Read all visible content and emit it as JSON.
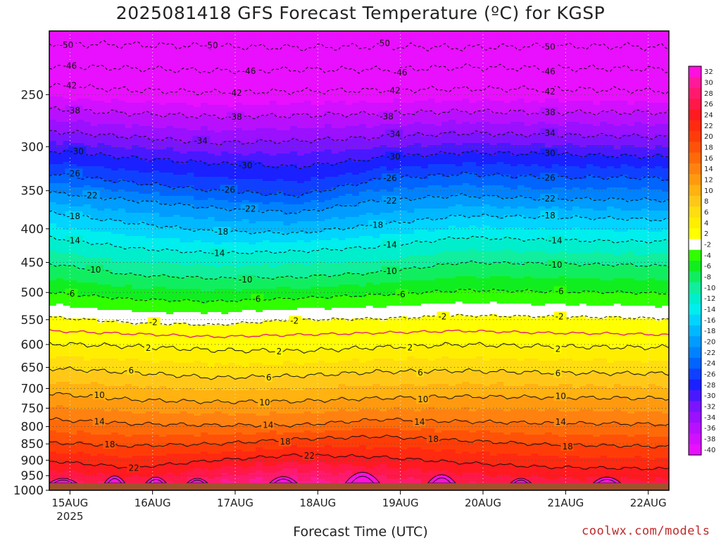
{
  "title": "2025081418 GFS Forecast Temperature (ºC) for KGSP",
  "xlabel": "Forecast Time (UTC)",
  "credit": "coolwx.com/models",
  "chart_data": {
    "type": "heatmap",
    "title": "2025081418 GFS Forecast Temperature (ºC) for KGSP",
    "xlabel": "Forecast Time (UTC)",
    "ylabel": "",
    "y_scale": "log",
    "y_inverted": true,
    "ylim": [
      1000,
      200
    ],
    "xlim": [
      "2025-08-14T18:00",
      "2025-08-22T06:00"
    ],
    "x_ticks": [
      {
        "label": "15AUG",
        "sublabel": "2025",
        "date": "2025-08-15T00:00"
      },
      {
        "label": "16AUG",
        "sublabel": "",
        "date": "2025-08-16T00:00"
      },
      {
        "label": "17AUG",
        "sublabel": "",
        "date": "2025-08-17T00:00"
      },
      {
        "label": "18AUG",
        "sublabel": "",
        "date": "2025-08-18T00:00"
      },
      {
        "label": "19AUG",
        "sublabel": "",
        "date": "2025-08-19T00:00"
      },
      {
        "label": "20AUG",
        "sublabel": "",
        "date": "2025-08-20T00:00"
      },
      {
        "label": "21AUG",
        "sublabel": "",
        "date": "2025-08-21T00:00"
      },
      {
        "label": "22AUG",
        "sublabel": "",
        "date": "2025-08-22T00:00"
      }
    ],
    "y_ticks": [
      250,
      300,
      350,
      400,
      450,
      500,
      550,
      600,
      650,
      700,
      750,
      800,
      850,
      900,
      950,
      1000
    ],
    "grid": true,
    "below_ground_pressure": 975,
    "below_ground_color": "#a0522d",
    "colorbar": {
      "position": "right",
      "labels": [
        32,
        30,
        28,
        26,
        24,
        22,
        20,
        18,
        16,
        14,
        12,
        10,
        8,
        6,
        4,
        2,
        -2,
        -4,
        -6,
        -8,
        -10,
        -12,
        -14,
        -16,
        -18,
        -20,
        -22,
        -24,
        -26,
        -28,
        -30,
        -32,
        -34,
        -36,
        -38,
        -40
      ],
      "colors": [
        "#ff10e0",
        "#ff1a9a",
        "#ff1a6e",
        "#ff1848",
        "#ff1a20",
        "#ff2a10",
        "#ff3c08",
        "#ff5208",
        "#ff6a08",
        "#ff8210",
        "#ff9a10",
        "#ffb210",
        "#ffc818",
        "#ffdd10",
        "#ffee00",
        "#ffff00",
        "#ffffff",
        "#30ff00",
        "#10ee20",
        "#10ee60",
        "#10ee9e",
        "#00eecc",
        "#00eeee",
        "#00d4ff",
        "#00b8ff",
        "#009cff",
        "#0082ff",
        "#0064ff",
        "#1040ff",
        "#1a20ff",
        "#4a18ff",
        "#7a14ff",
        "#9a10ff",
        "#b810ff",
        "#d010ff",
        "#e810ff"
      ]
    },
    "isotherms": [
      {
        "value": -50,
        "style": "dashed",
        "series": [
          [
            0,
            209
          ],
          [
            24,
            210
          ],
          [
            48,
            211
          ],
          [
            72,
            212
          ],
          [
            96,
            211
          ],
          [
            120,
            212
          ],
          [
            144,
            211
          ],
          [
            168,
            211
          ],
          [
            180,
            212
          ]
        ],
        "label_times": [
          3,
          45,
          95,
          143
        ]
      },
      {
        "value": -46,
        "style": "dashed",
        "series": [
          [
            0,
            226
          ],
          [
            24,
            228
          ],
          [
            48,
            230
          ],
          [
            72,
            229
          ],
          [
            96,
            229
          ],
          [
            120,
            227
          ],
          [
            144,
            228
          ],
          [
            168,
            228
          ],
          [
            180,
            229
          ]
        ],
        "label_times": [
          4,
          56,
          100,
          143
        ]
      },
      {
        "value": -42,
        "style": "dashed",
        "series": [
          [
            0,
            242
          ],
          [
            24,
            246
          ],
          [
            48,
            248
          ],
          [
            72,
            247
          ],
          [
            96,
            246
          ],
          [
            120,
            245
          ],
          [
            144,
            245
          ],
          [
            168,
            246
          ],
          [
            180,
            247
          ]
        ],
        "label_times": [
          4,
          52,
          98,
          143
        ]
      },
      {
        "value": -38,
        "style": "dashed",
        "series": [
          [
            0,
            263
          ],
          [
            24,
            267
          ],
          [
            48,
            270
          ],
          [
            72,
            269
          ],
          [
            96,
            267
          ],
          [
            120,
            265
          ],
          [
            144,
            266
          ],
          [
            168,
            266
          ],
          [
            180,
            266
          ]
        ],
        "label_times": [
          5,
          52,
          96,
          143
        ]
      },
      {
        "value": -34,
        "style": "dashed",
        "series": [
          [
            0,
            284
          ],
          [
            24,
            290
          ],
          [
            48,
            296
          ],
          [
            72,
            294
          ],
          [
            96,
            290
          ],
          [
            120,
            286
          ],
          [
            144,
            288
          ],
          [
            168,
            289
          ],
          [
            180,
            290
          ]
        ],
        "label_times": [
          42,
          98,
          143
        ]
      },
      {
        "value": -30,
        "style": "dashed",
        "series": [
          [
            0,
            304
          ],
          [
            24,
            312
          ],
          [
            48,
            318
          ],
          [
            72,
            322
          ],
          [
            96,
            312
          ],
          [
            120,
            306
          ],
          [
            144,
            308
          ],
          [
            168,
            310
          ],
          [
            180,
            311
          ]
        ],
        "label_times": [
          6,
          55,
          98,
          143
        ]
      },
      {
        "value": -26,
        "style": "dashed",
        "series": [
          [
            0,
            330
          ],
          [
            24,
            340
          ],
          [
            48,
            350
          ],
          [
            72,
            356
          ],
          [
            96,
            336
          ],
          [
            120,
            330
          ],
          [
            144,
            334
          ],
          [
            168,
            334
          ],
          [
            180,
            336
          ]
        ],
        "label_times": [
          5,
          50,
          97,
          143
        ]
      },
      {
        "value": -22,
        "style": "dashed",
        "series": [
          [
            0,
            352
          ],
          [
            24,
            362
          ],
          [
            48,
            372
          ],
          [
            72,
            378
          ],
          [
            96,
            362
          ],
          [
            120,
            356
          ],
          [
            144,
            360
          ],
          [
            168,
            361
          ],
          [
            180,
            362
          ]
        ],
        "label_times": [
          10,
          56,
          97,
          143
        ]
      },
      {
        "value": -18,
        "style": "dashed",
        "series": [
          [
            0,
            378
          ],
          [
            24,
            392
          ],
          [
            48,
            404
          ],
          [
            72,
            406
          ],
          [
            96,
            394
          ],
          [
            120,
            382
          ],
          [
            144,
            384
          ],
          [
            168,
            386
          ],
          [
            180,
            388
          ]
        ],
        "label_times": [
          5,
          48,
          93,
          143
        ]
      },
      {
        "value": -14,
        "style": "dashed",
        "series": [
          [
            0,
            412
          ],
          [
            24,
            428
          ],
          [
            48,
            436
          ],
          [
            72,
            433
          ],
          [
            96,
            426
          ],
          [
            120,
            412
          ],
          [
            144,
            416
          ],
          [
            168,
            418
          ],
          [
            180,
            418
          ]
        ],
        "label_times": [
          5,
          47,
          97,
          145
        ]
      },
      {
        "value": -10,
        "style": "dashed",
        "series": [
          [
            0,
            452
          ],
          [
            24,
            470
          ],
          [
            48,
            476
          ],
          [
            72,
            474
          ],
          [
            96,
            466
          ],
          [
            120,
            450
          ],
          [
            144,
            452
          ],
          [
            168,
            454
          ],
          [
            180,
            456
          ]
        ],
        "label_times": [
          11,
          55,
          97,
          145
        ]
      },
      {
        "value": -6,
        "style": "dashed",
        "series": [
          [
            0,
            500
          ],
          [
            24,
            512
          ],
          [
            48,
            516
          ],
          [
            72,
            510
          ],
          [
            96,
            504
          ],
          [
            120,
            496
          ],
          [
            144,
            498
          ],
          [
            168,
            500
          ],
          [
            180,
            502
          ]
        ],
        "label_times": [
          5,
          59,
          101,
          147
        ]
      },
      {
        "value": -2,
        "style": "dashed",
        "series": [
          [
            0,
            545
          ],
          [
            24,
            556
          ],
          [
            48,
            560
          ],
          [
            72,
            550
          ],
          [
            96,
            548
          ],
          [
            120,
            542
          ],
          [
            144,
            544
          ],
          [
            168,
            546
          ],
          [
            180,
            548
          ]
        ],
        "label_times": [
          29,
          70,
          113,
          147
        ]
      },
      {
        "value": 0,
        "style": "solid",
        "color": "#e0207a",
        "series": [
          [
            0,
            572
          ],
          [
            24,
            578
          ],
          [
            48,
            584
          ],
          [
            72,
            580
          ],
          [
            96,
            576
          ],
          [
            120,
            572
          ],
          [
            144,
            576
          ],
          [
            168,
            578
          ],
          [
            180,
            580
          ]
        ],
        "label_times": []
      },
      {
        "value": 2,
        "style": "solid",
        "series": [
          [
            0,
            598
          ],
          [
            24,
            604
          ],
          [
            48,
            612
          ],
          [
            72,
            614
          ],
          [
            96,
            606
          ],
          [
            120,
            600
          ],
          [
            144,
            604
          ],
          [
            168,
            606
          ],
          [
            180,
            606
          ]
        ],
        "label_times": [
          28,
          66,
          104,
          147
        ]
      },
      {
        "value": 6,
        "style": "solid",
        "series": [
          [
            0,
            652
          ],
          [
            24,
            662
          ],
          [
            48,
            674
          ],
          [
            72,
            670
          ],
          [
            96,
            660
          ],
          [
            120,
            658
          ],
          [
            144,
            662
          ],
          [
            168,
            664
          ],
          [
            180,
            664
          ]
        ],
        "label_times": [
          23,
          63,
          107,
          147
        ]
      },
      {
        "value": 10,
        "style": "solid",
        "series": [
          [
            0,
            712
          ],
          [
            24,
            728
          ],
          [
            48,
            734
          ],
          [
            72,
            732
          ],
          [
            96,
            724
          ],
          [
            120,
            720
          ],
          [
            144,
            722
          ],
          [
            168,
            724
          ],
          [
            180,
            724
          ]
        ],
        "label_times": [
          13,
          61,
          107,
          147
        ]
      },
      {
        "value": 14,
        "style": "solid",
        "series": [
          [
            0,
            780
          ],
          [
            24,
            792
          ],
          [
            48,
            796
          ],
          [
            72,
            796
          ],
          [
            96,
            780
          ],
          [
            120,
            786
          ],
          [
            144,
            790
          ],
          [
            168,
            792
          ],
          [
            180,
            794
          ]
        ],
        "label_times": [
          13,
          62,
          106,
          147
        ]
      },
      {
        "value": 18,
        "style": "solid",
        "series": [
          [
            0,
            846
          ],
          [
            24,
            856
          ],
          [
            48,
            850
          ],
          [
            72,
            836
          ],
          [
            96,
            828
          ],
          [
            120,
            840
          ],
          [
            144,
            852
          ],
          [
            168,
            856
          ],
          [
            180,
            858
          ]
        ],
        "label_times": [
          16,
          67,
          110,
          149
        ]
      },
      {
        "value": 22,
        "style": "solid",
        "series": [
          [
            0,
            902
          ],
          [
            24,
            924
          ],
          [
            48,
            900
          ],
          [
            72,
            884
          ],
          [
            96,
            890
          ],
          [
            120,
            908
          ],
          [
            144,
            922
          ],
          [
            168,
            926
          ],
          [
            180,
            928
          ]
        ],
        "label_times": [
          23,
          74
        ]
      }
    ],
    "surface_cells": [
      {
        "t0": 0,
        "t1": 8,
        "p0": 955,
        "p1": 975
      },
      {
        "t0": 16,
        "t1": 22,
        "p0": 945,
        "p1": 975
      },
      {
        "t0": 28,
        "t1": 34,
        "p0": 950,
        "p1": 975
      },
      {
        "t0": 40,
        "t1": 46,
        "p0": 955,
        "p1": 975
      },
      {
        "t0": 64,
        "t1": 72,
        "p0": 948,
        "p1": 975
      },
      {
        "t0": 86,
        "t1": 96,
        "p0": 930,
        "p1": 975
      },
      {
        "t0": 110,
        "t1": 118,
        "p0": 940,
        "p1": 975
      },
      {
        "t0": 134,
        "t1": 140,
        "p0": 955,
        "p1": 975
      },
      {
        "t0": 158,
        "t1": 166,
        "p0": 950,
        "p1": 975
      }
    ]
  }
}
